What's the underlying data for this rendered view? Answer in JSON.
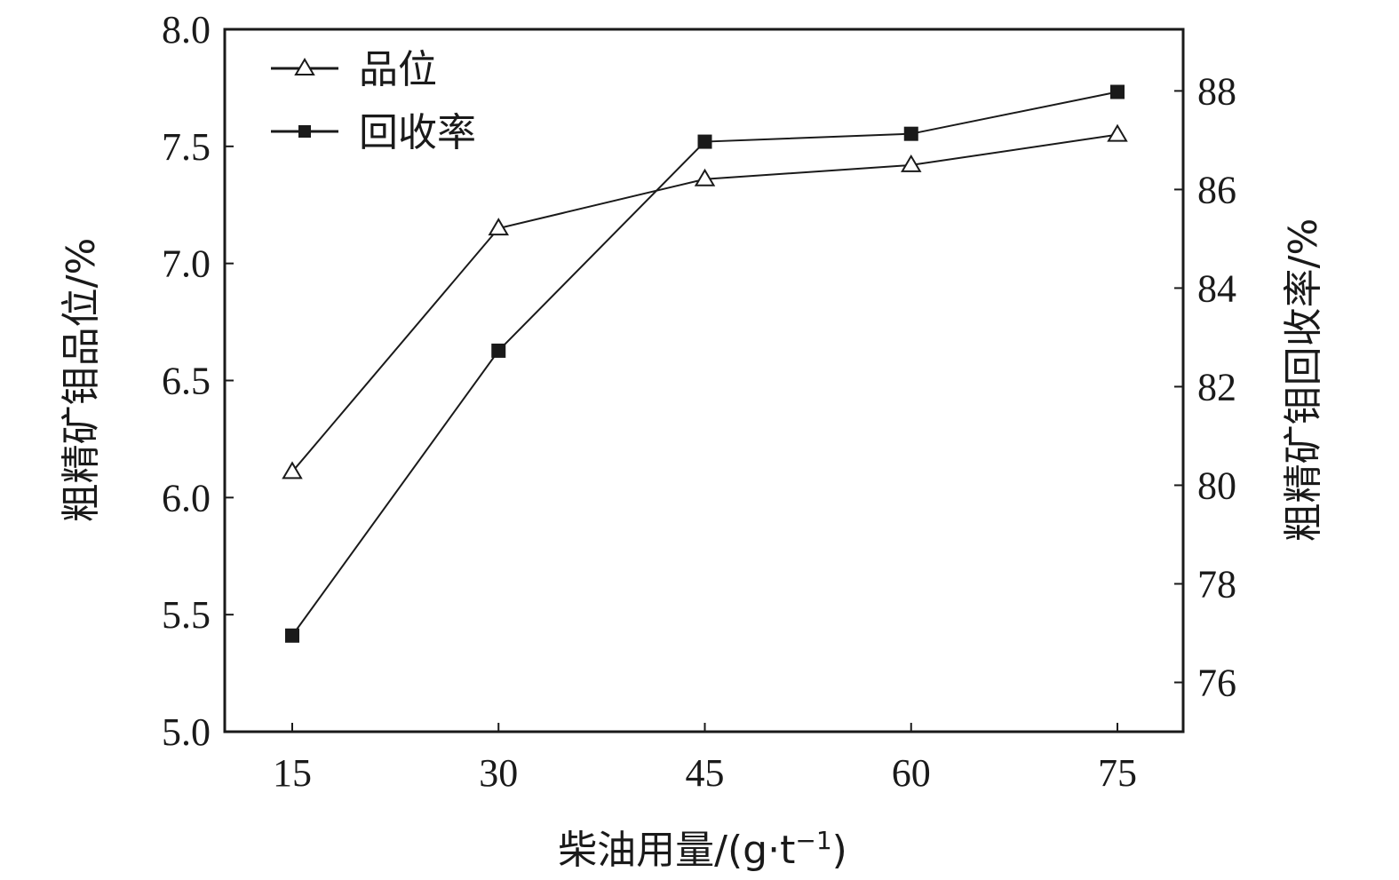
{
  "chart_data": {
    "type": "line",
    "x": [
      15,
      30,
      45,
      60,
      75
    ],
    "xlabel": "柴油用量/(g·t",
    "xlabel_sup": "−1",
    "xlabel_end": ")",
    "ylabel_left": "粗精矿钼品位/%",
    "ylabel_right": "粗精矿钼回收率/%",
    "ylim_left": [
      5.0,
      8.0
    ],
    "ylim_right": [
      75,
      89.25
    ],
    "yticks_left": [
      "5.0",
      "5.5",
      "6.0",
      "6.5",
      "7.0",
      "7.5",
      "8.0"
    ],
    "yticks_right": [
      "76",
      "78",
      "80",
      "82",
      "84",
      "86",
      "88"
    ],
    "xticks": [
      "15",
      "30",
      "45",
      "60",
      "75"
    ],
    "grid": false,
    "legend_position": "top-left",
    "series": [
      {
        "name": "品位",
        "axis": "left",
        "marker": "open-triangle",
        "values": [
          6.11,
          7.15,
          7.36,
          7.42,
          7.55
        ]
      },
      {
        "name": "回收率",
        "axis": "right",
        "marker": "filled-square",
        "values": [
          76.95,
          82.73,
          86.97,
          87.13,
          87.98
        ]
      }
    ],
    "colors": {
      "line": "#1a1a1a",
      "marker_fill": "#1a1a1a",
      "background": "#ffffff"
    }
  }
}
